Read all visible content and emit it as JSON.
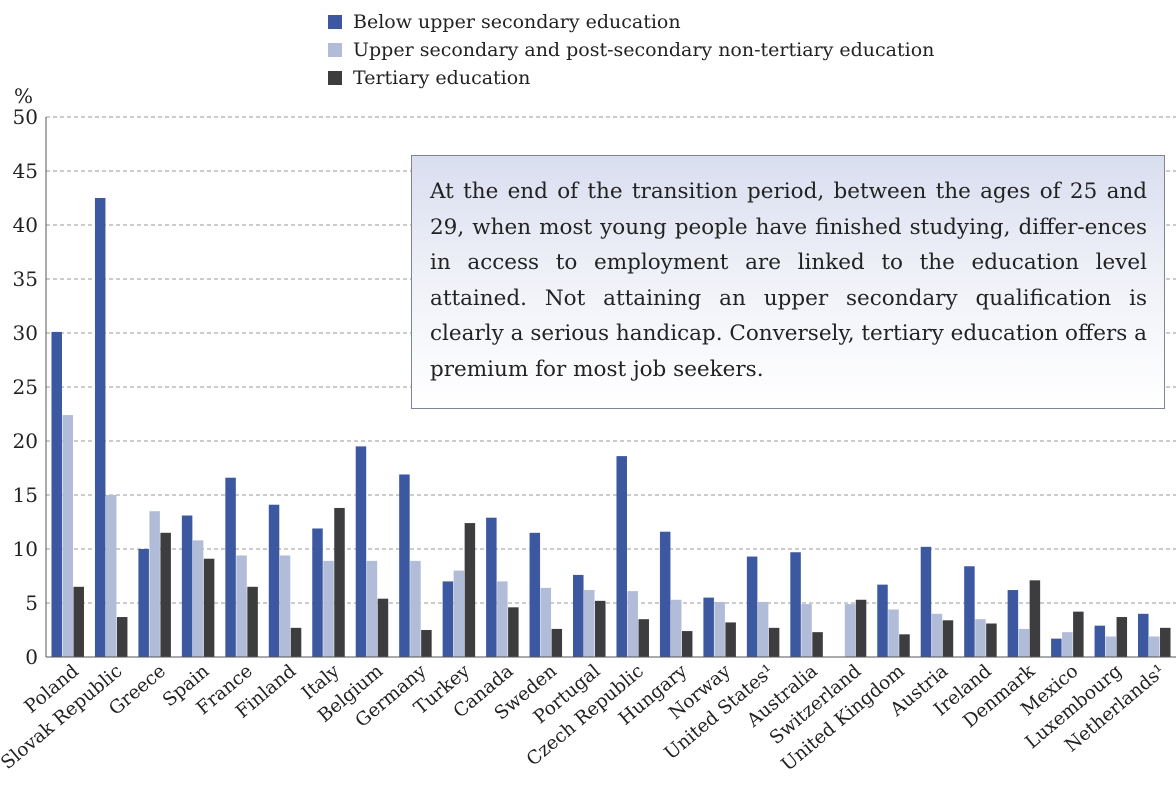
{
  "chart_data": {
    "type": "bar",
    "ylabel": "%",
    "ylim": [
      0,
      50
    ],
    "yticks": [
      0,
      5,
      10,
      15,
      20,
      25,
      30,
      35,
      40,
      45,
      50
    ],
    "grid": true,
    "legend_position": "top-center",
    "categories": [
      "Poland",
      "Slovak Republic",
      "Greece",
      "Spain",
      "France",
      "Finland",
      "Italy",
      "Belgium",
      "Germany",
      "Turkey",
      "Canada",
      "Sweden",
      "Portugal",
      "Czech Republic",
      "Hungary",
      "Norway",
      "United States¹",
      "Australia",
      "Switzerland",
      "United Kingdom",
      "Austria",
      "Ireland",
      "Denmark",
      "Mexico",
      "Luxembourg",
      "Netherlands¹"
    ],
    "series": [
      {
        "name": "Below upper secondary education",
        "color": "#3b58a0",
        "values": [
          30.1,
          42.5,
          10.0,
          13.1,
          16.6,
          14.1,
          11.9,
          19.5,
          16.9,
          7.0,
          12.9,
          11.5,
          7.6,
          18.6,
          11.6,
          5.5,
          9.3,
          9.7,
          0,
          6.7,
          10.2,
          8.4,
          6.2,
          1.7,
          2.9,
          4.0
        ]
      },
      {
        "name": "Upper secondary and post-secondary non-tertiary education",
        "color": "#b1bcd8",
        "values": [
          22.4,
          15.0,
          13.5,
          10.8,
          9.4,
          9.4,
          8.9,
          8.9,
          8.9,
          8.0,
          7.0,
          6.4,
          6.2,
          6.1,
          5.3,
          5.1,
          5.1,
          4.9,
          4.9,
          4.4,
          4.0,
          3.5,
          2.6,
          2.3,
          1.9,
          1.9
        ]
      },
      {
        "name": "Tertiary education",
        "color": "#3d3d3f",
        "values": [
          6.5,
          3.7,
          11.5,
          9.1,
          6.5,
          2.7,
          13.8,
          5.4,
          2.5,
          12.4,
          4.6,
          2.6,
          5.2,
          3.5,
          2.4,
          3.2,
          2.7,
          2.3,
          5.3,
          2.1,
          3.4,
          3.1,
          7.1,
          4.2,
          3.7,
          2.7
        ]
      }
    ]
  },
  "callout": {
    "text": "At the end of the transition period, between the ages of 25 and 29, when most young people have finished studying, differ-ences in access to employment are linked to the education level attained. Not attaining an upper secondary qualification is clearly a serious handicap. Conversely, tertiary education offers a premium for most job seekers."
  }
}
